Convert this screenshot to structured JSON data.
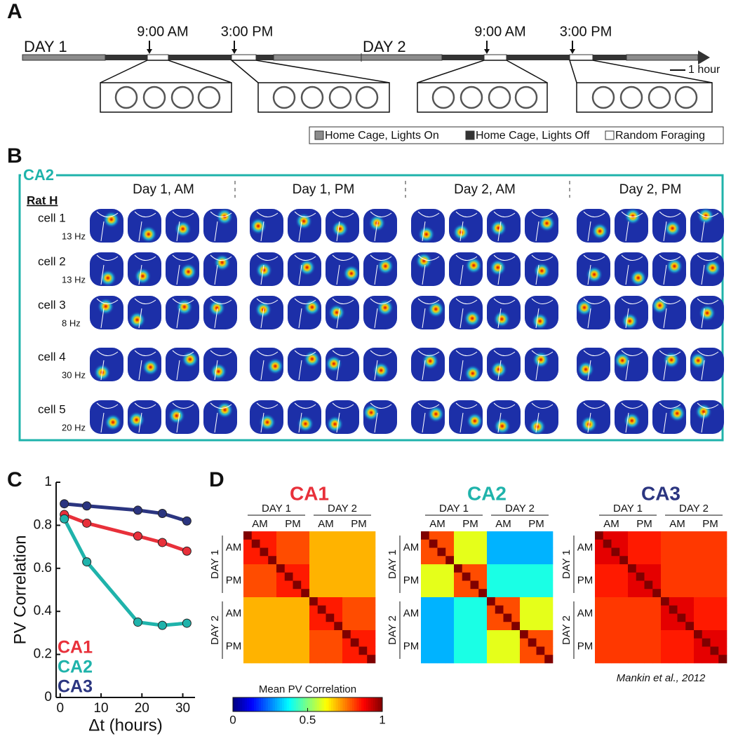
{
  "panels": {
    "A": {
      "label": "A",
      "days": [
        "DAY 1",
        "DAY 2"
      ],
      "times": [
        "9:00 AM",
        "3:00 PM",
        "9:00 AM",
        "3:00 PM"
      ],
      "scale_label": "1 hour",
      "legend": [
        "Home Cage, Lights On",
        "Home Cage, Lights Off",
        "Random Foraging"
      ]
    },
    "B": {
      "label": "B",
      "region": "CA2",
      "rat": "Rat H",
      "sessions": [
        "Day 1, AM",
        "Day 1, PM",
        "Day 2, AM",
        "Day 2, PM"
      ],
      "cells": [
        "cell 1",
        "cell 2",
        "cell 3",
        "cell 4",
        "cell 5"
      ],
      "peak_rates": [
        "13 Hz",
        "13 Hz",
        "8 Hz",
        "30 Hz",
        "20 Hz"
      ]
    },
    "C": {
      "label": "C"
    },
    "D": {
      "label": "D"
    }
  },
  "chart_data": [
    {
      "type": "line",
      "xlabel": "Δt (hours)",
      "ylabel": "PV Correlation",
      "x": [
        1,
        6.5,
        19,
        25,
        31
      ],
      "xlim": [
        -1,
        33
      ],
      "xticks": [
        0,
        10,
        20,
        30
      ],
      "ylim": [
        0,
        1
      ],
      "yticks": [
        0,
        0.2,
        0.4,
        0.6,
        0.8,
        1
      ],
      "series": [
        {
          "name": "CA1",
          "color": "#e8303a",
          "values": [
            0.85,
            0.81,
            0.75,
            0.72,
            0.68
          ]
        },
        {
          "name": "CA2",
          "color": "#1fb3ab",
          "values": [
            0.83,
            0.63,
            0.35,
            0.335,
            0.345
          ]
        },
        {
          "name": "CA3",
          "color": "#2b3580",
          "values": [
            0.9,
            0.89,
            0.87,
            0.855,
            0.82
          ]
        }
      ]
    },
    {
      "type": "heatmap",
      "title": "CA1",
      "color": "#e8303a",
      "groups": [
        "DAY 1",
        "DAY 2"
      ],
      "subgroups": [
        "AM",
        "PM"
      ],
      "colorbar": {
        "label": "Mean PV Correlation",
        "lim": [
          0,
          1
        ],
        "ticks": [
          0,
          0.5,
          1
        ]
      },
      "matrix": [
        [
          1,
          0.85,
          0.85,
          0.85,
          0.8,
          0.8,
          0.8,
          0.8,
          0.7,
          0.7,
          0.7,
          0.7,
          0.7,
          0.7,
          0.7,
          0.7
        ],
        [
          0.85,
          1,
          0.85,
          0.85,
          0.8,
          0.8,
          0.8,
          0.8,
          0.7,
          0.7,
          0.7,
          0.7,
          0.7,
          0.7,
          0.7,
          0.7
        ],
        [
          0.85,
          0.85,
          1,
          0.85,
          0.8,
          0.8,
          0.8,
          0.8,
          0.7,
          0.7,
          0.7,
          0.7,
          0.7,
          0.7,
          0.7,
          0.7
        ],
        [
          0.85,
          0.85,
          0.85,
          1,
          0.8,
          0.8,
          0.8,
          0.8,
          0.7,
          0.7,
          0.7,
          0.7,
          0.7,
          0.7,
          0.7,
          0.7
        ],
        [
          0.8,
          0.8,
          0.8,
          0.8,
          1,
          0.85,
          0.85,
          0.85,
          0.7,
          0.7,
          0.7,
          0.7,
          0.7,
          0.7,
          0.7,
          0.7
        ],
        [
          0.8,
          0.8,
          0.8,
          0.8,
          0.85,
          1,
          0.85,
          0.85,
          0.7,
          0.7,
          0.7,
          0.7,
          0.7,
          0.7,
          0.7,
          0.7
        ],
        [
          0.8,
          0.8,
          0.8,
          0.8,
          0.85,
          0.85,
          1,
          0.85,
          0.7,
          0.7,
          0.7,
          0.7,
          0.7,
          0.7,
          0.7,
          0.7
        ],
        [
          0.8,
          0.8,
          0.8,
          0.8,
          0.85,
          0.85,
          0.85,
          1,
          0.7,
          0.7,
          0.7,
          0.7,
          0.7,
          0.7,
          0.7,
          0.7
        ],
        [
          0.7,
          0.7,
          0.7,
          0.7,
          0.7,
          0.7,
          0.7,
          0.7,
          1,
          0.85,
          0.85,
          0.85,
          0.8,
          0.8,
          0.8,
          0.8
        ],
        [
          0.7,
          0.7,
          0.7,
          0.7,
          0.7,
          0.7,
          0.7,
          0.7,
          0.85,
          1,
          0.85,
          0.85,
          0.8,
          0.8,
          0.8,
          0.8
        ],
        [
          0.7,
          0.7,
          0.7,
          0.7,
          0.7,
          0.7,
          0.7,
          0.7,
          0.85,
          0.85,
          1,
          0.85,
          0.8,
          0.8,
          0.8,
          0.8
        ],
        [
          0.7,
          0.7,
          0.7,
          0.7,
          0.7,
          0.7,
          0.7,
          0.7,
          0.85,
          0.85,
          0.85,
          1,
          0.8,
          0.8,
          0.8,
          0.8
        ],
        [
          0.7,
          0.7,
          0.7,
          0.7,
          0.7,
          0.7,
          0.7,
          0.7,
          0.8,
          0.8,
          0.8,
          0.8,
          1,
          0.85,
          0.85,
          0.85
        ],
        [
          0.7,
          0.7,
          0.7,
          0.7,
          0.7,
          0.7,
          0.7,
          0.7,
          0.8,
          0.8,
          0.8,
          0.8,
          0.85,
          1,
          0.85,
          0.85
        ],
        [
          0.7,
          0.7,
          0.7,
          0.7,
          0.7,
          0.7,
          0.7,
          0.7,
          0.8,
          0.8,
          0.8,
          0.8,
          0.85,
          0.85,
          1,
          0.85
        ],
        [
          0.7,
          0.7,
          0.7,
          0.7,
          0.7,
          0.7,
          0.7,
          0.7,
          0.8,
          0.8,
          0.8,
          0.8,
          0.85,
          0.85,
          0.85,
          1
        ]
      ]
    },
    {
      "type": "heatmap",
      "title": "CA2",
      "color": "#1fb3ab",
      "groups": [
        "DAY 1",
        "DAY 2"
      ],
      "subgroups": [
        "AM",
        "PM"
      ],
      "matrix": [
        [
          1,
          0.8,
          0.8,
          0.8,
          0.6,
          0.6,
          0.6,
          0.6,
          0.3,
          0.3,
          0.3,
          0.3,
          0.3,
          0.3,
          0.3,
          0.3
        ],
        [
          0.8,
          1,
          0.8,
          0.8,
          0.6,
          0.6,
          0.6,
          0.6,
          0.3,
          0.3,
          0.3,
          0.3,
          0.3,
          0.3,
          0.3,
          0.3
        ],
        [
          0.8,
          0.8,
          1,
          0.8,
          0.6,
          0.6,
          0.6,
          0.6,
          0.3,
          0.3,
          0.3,
          0.3,
          0.3,
          0.3,
          0.3,
          0.3
        ],
        [
          0.8,
          0.8,
          0.8,
          1,
          0.6,
          0.6,
          0.6,
          0.6,
          0.3,
          0.3,
          0.3,
          0.3,
          0.3,
          0.3,
          0.3,
          0.3
        ],
        [
          0.6,
          0.6,
          0.6,
          0.6,
          1,
          0.8,
          0.8,
          0.8,
          0.4,
          0.4,
          0.4,
          0.4,
          0.4,
          0.4,
          0.4,
          0.4
        ],
        [
          0.6,
          0.6,
          0.6,
          0.6,
          0.8,
          1,
          0.8,
          0.8,
          0.4,
          0.4,
          0.4,
          0.4,
          0.4,
          0.4,
          0.4,
          0.4
        ],
        [
          0.6,
          0.6,
          0.6,
          0.6,
          0.8,
          0.8,
          1,
          0.8,
          0.4,
          0.4,
          0.4,
          0.4,
          0.4,
          0.4,
          0.4,
          0.4
        ],
        [
          0.6,
          0.6,
          0.6,
          0.6,
          0.8,
          0.8,
          0.8,
          1,
          0.4,
          0.4,
          0.4,
          0.4,
          0.4,
          0.4,
          0.4,
          0.4
        ],
        [
          0.3,
          0.3,
          0.3,
          0.3,
          0.4,
          0.4,
          0.4,
          0.4,
          1,
          0.8,
          0.8,
          0.8,
          0.6,
          0.6,
          0.6,
          0.6
        ],
        [
          0.3,
          0.3,
          0.3,
          0.3,
          0.4,
          0.4,
          0.4,
          0.4,
          0.8,
          1,
          0.8,
          0.8,
          0.6,
          0.6,
          0.6,
          0.6
        ],
        [
          0.3,
          0.3,
          0.3,
          0.3,
          0.4,
          0.4,
          0.4,
          0.4,
          0.8,
          0.8,
          1,
          0.8,
          0.6,
          0.6,
          0.6,
          0.6
        ],
        [
          0.3,
          0.3,
          0.3,
          0.3,
          0.4,
          0.4,
          0.4,
          0.4,
          0.8,
          0.8,
          0.8,
          1,
          0.6,
          0.6,
          0.6,
          0.6
        ],
        [
          0.3,
          0.3,
          0.3,
          0.3,
          0.4,
          0.4,
          0.4,
          0.4,
          0.6,
          0.6,
          0.6,
          0.6,
          1,
          0.8,
          0.8,
          0.8
        ],
        [
          0.3,
          0.3,
          0.3,
          0.3,
          0.4,
          0.4,
          0.4,
          0.4,
          0.6,
          0.6,
          0.6,
          0.6,
          0.8,
          1,
          0.8,
          0.8
        ],
        [
          0.3,
          0.3,
          0.3,
          0.3,
          0.4,
          0.4,
          0.4,
          0.4,
          0.6,
          0.6,
          0.6,
          0.6,
          0.8,
          0.8,
          1,
          0.8
        ],
        [
          0.3,
          0.3,
          0.3,
          0.3,
          0.4,
          0.4,
          0.4,
          0.4,
          0.6,
          0.6,
          0.6,
          0.6,
          0.8,
          0.8,
          0.8,
          1
        ]
      ]
    },
    {
      "type": "heatmap",
      "title": "CA3",
      "color": "#2b3580",
      "groups": [
        "DAY 1",
        "DAY 2"
      ],
      "subgroups": [
        "AM",
        "PM"
      ],
      "annotation": "Mankin et al., 2012",
      "matrix": [
        [
          1,
          0.9,
          0.9,
          0.9,
          0.85,
          0.85,
          0.85,
          0.85,
          0.82,
          0.82,
          0.82,
          0.82,
          0.82,
          0.82,
          0.82,
          0.82
        ],
        [
          0.9,
          1,
          0.9,
          0.9,
          0.85,
          0.85,
          0.85,
          0.85,
          0.82,
          0.82,
          0.82,
          0.82,
          0.82,
          0.82,
          0.82,
          0.82
        ],
        [
          0.9,
          0.9,
          1,
          0.9,
          0.85,
          0.85,
          0.85,
          0.85,
          0.82,
          0.82,
          0.82,
          0.82,
          0.82,
          0.82,
          0.82,
          0.82
        ],
        [
          0.9,
          0.9,
          0.9,
          1,
          0.85,
          0.85,
          0.85,
          0.85,
          0.82,
          0.82,
          0.82,
          0.82,
          0.82,
          0.82,
          0.82,
          0.82
        ],
        [
          0.85,
          0.85,
          0.85,
          0.85,
          1,
          0.9,
          0.9,
          0.9,
          0.82,
          0.82,
          0.82,
          0.82,
          0.82,
          0.82,
          0.82,
          0.82
        ],
        [
          0.85,
          0.85,
          0.85,
          0.85,
          0.9,
          1,
          0.9,
          0.9,
          0.82,
          0.82,
          0.82,
          0.82,
          0.82,
          0.82,
          0.82,
          0.82
        ],
        [
          0.85,
          0.85,
          0.85,
          0.85,
          0.9,
          0.9,
          1,
          0.9,
          0.82,
          0.82,
          0.82,
          0.82,
          0.82,
          0.82,
          0.82,
          0.82
        ],
        [
          0.85,
          0.85,
          0.85,
          0.85,
          0.9,
          0.9,
          0.9,
          1,
          0.82,
          0.82,
          0.82,
          0.82,
          0.82,
          0.82,
          0.82,
          0.82
        ],
        [
          0.82,
          0.82,
          0.82,
          0.82,
          0.82,
          0.82,
          0.82,
          0.82,
          1,
          0.9,
          0.9,
          0.9,
          0.85,
          0.85,
          0.85,
          0.85
        ],
        [
          0.82,
          0.82,
          0.82,
          0.82,
          0.82,
          0.82,
          0.82,
          0.82,
          0.9,
          1,
          0.9,
          0.9,
          0.85,
          0.85,
          0.85,
          0.85
        ],
        [
          0.82,
          0.82,
          0.82,
          0.82,
          0.82,
          0.82,
          0.82,
          0.82,
          0.9,
          0.9,
          1,
          0.9,
          0.85,
          0.85,
          0.85,
          0.85
        ],
        [
          0.82,
          0.82,
          0.82,
          0.82,
          0.82,
          0.82,
          0.82,
          0.82,
          0.9,
          0.9,
          0.9,
          1,
          0.85,
          0.85,
          0.85,
          0.85
        ],
        [
          0.82,
          0.82,
          0.82,
          0.82,
          0.82,
          0.82,
          0.82,
          0.82,
          0.85,
          0.85,
          0.85,
          0.85,
          1,
          0.9,
          0.9,
          0.9
        ],
        [
          0.82,
          0.82,
          0.82,
          0.82,
          0.82,
          0.82,
          0.82,
          0.82,
          0.85,
          0.85,
          0.85,
          0.85,
          0.9,
          1,
          0.9,
          0.9
        ],
        [
          0.82,
          0.82,
          0.82,
          0.82,
          0.82,
          0.82,
          0.82,
          0.82,
          0.85,
          0.85,
          0.85,
          0.85,
          0.9,
          0.9,
          1,
          0.9
        ],
        [
          0.82,
          0.82,
          0.82,
          0.82,
          0.82,
          0.82,
          0.82,
          0.82,
          0.85,
          0.85,
          0.85,
          0.85,
          0.9,
          0.9,
          0.9,
          1
        ]
      ]
    }
  ]
}
